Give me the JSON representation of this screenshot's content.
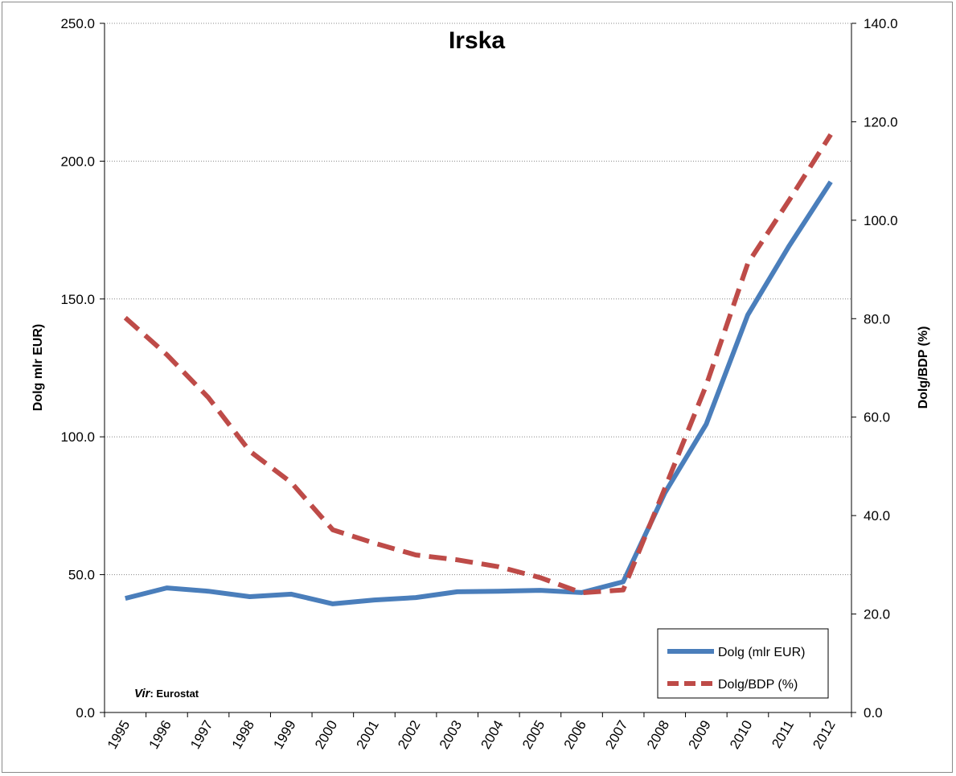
{
  "chart_data": {
    "type": "line",
    "title": "Irska",
    "x": [
      "1995",
      "1996",
      "1997",
      "1998",
      "1999",
      "2000",
      "2001",
      "2002",
      "2003",
      "2004",
      "2005",
      "2006",
      "2007",
      "2008",
      "2009",
      "2010",
      "2011",
      "2012"
    ],
    "ylabel": "Dolg mlr EUR)",
    "y2label": "Dolg/BDP (%)",
    "ylim": [
      0,
      250
    ],
    "y2lim": [
      0,
      140
    ],
    "yticks": [
      "0.0",
      "50.0",
      "100.0",
      "150.0",
      "200.0",
      "250.0"
    ],
    "y2ticks": [
      "0.0",
      "20.0",
      "40.0",
      "60.0",
      "80.0",
      "100.0",
      "120.0",
      "140.0"
    ],
    "grid": "horizontal dotted",
    "legend_position": "bottom-right",
    "series": [
      {
        "name": "Dolg (mlr EUR)",
        "axis": "left",
        "color": "#4a7ebb",
        "style": "solid",
        "values": [
          41.4,
          45.2,
          44.0,
          42.0,
          42.9,
          39.4,
          40.8,
          41.7,
          43.8,
          44.0,
          44.3,
          43.5,
          47.4,
          79.6,
          104.6,
          144.2,
          169.3,
          192.5
        ]
      },
      {
        "name": "Dolg/BDP (%)",
        "axis": "right",
        "color": "#be4b48",
        "style": "dashed",
        "values": [
          80.2,
          72.7,
          64.0,
          53.1,
          46.7,
          37.1,
          34.4,
          32.0,
          31.0,
          29.6,
          27.4,
          24.3,
          24.9,
          45.5,
          66.5,
          91.2,
          104.1,
          117.4
        ]
      }
    ],
    "source_label": "Vir",
    "source_text": ": Eurostat"
  }
}
